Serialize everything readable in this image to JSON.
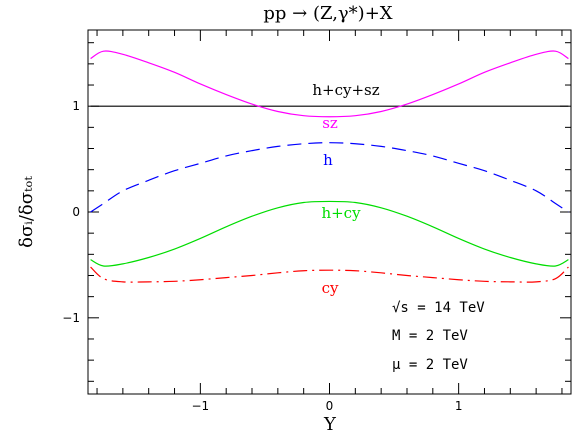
{
  "chart_data": {
    "type": "line",
    "title": "pp → (Z,γ*)+X",
    "xlabel": "Y",
    "ylabel": "δσᵢ/δσₜₒₜ",
    "xlim": [
      -1.87,
      1.87
    ],
    "ylim": [
      -1.72,
      1.72
    ],
    "xticks": [
      -1,
      0,
      1
    ],
    "yticks": [
      -1,
      0,
      1
    ],
    "grid": false,
    "legend": "none",
    "series": [
      {
        "name": "h+cy+sz",
        "style": "solid",
        "color": "#000000",
        "x": [
          -1.85,
          1.85
        ],
        "y": [
          1.0,
          1.0
        ]
      },
      {
        "name": "sz",
        "style": "solid",
        "color": "#ff00ff",
        "x": [
          -1.85,
          -1.75,
          -1.6,
          -1.4,
          -1.2,
          -1.0,
          -0.8,
          -0.6,
          -0.4,
          -0.2,
          0.0,
          0.2,
          0.4,
          0.6,
          0.8,
          1.0,
          1.2,
          1.4,
          1.6,
          1.75,
          1.85
        ],
        "y": [
          1.45,
          1.52,
          1.49,
          1.41,
          1.32,
          1.21,
          1.11,
          1.02,
          0.95,
          0.91,
          0.9,
          0.91,
          0.95,
          1.02,
          1.11,
          1.21,
          1.32,
          1.41,
          1.49,
          1.52,
          1.45
        ]
      },
      {
        "name": "h",
        "style": "dash",
        "color": "#0000ff",
        "x": [
          -1.85,
          -1.75,
          -1.6,
          -1.4,
          -1.2,
          -1.0,
          -0.8,
          -0.6,
          -0.4,
          -0.2,
          0.0,
          0.2,
          0.4,
          0.6,
          0.8,
          1.0,
          1.2,
          1.4,
          1.6,
          1.75,
          1.85
        ],
        "y": [
          0.0,
          0.08,
          0.2,
          0.3,
          0.39,
          0.46,
          0.53,
          0.58,
          0.62,
          0.645,
          0.655,
          0.645,
          0.62,
          0.58,
          0.53,
          0.46,
          0.39,
          0.3,
          0.2,
          0.08,
          0.0
        ]
      },
      {
        "name": "h+cy",
        "style": "solid",
        "color": "#00dd00",
        "x": [
          -1.85,
          -1.75,
          -1.6,
          -1.4,
          -1.2,
          -1.0,
          -0.8,
          -0.6,
          -0.4,
          -0.2,
          0.0,
          0.2,
          0.4,
          0.6,
          0.8,
          1.0,
          1.2,
          1.4,
          1.6,
          1.75,
          1.85
        ],
        "y": [
          -0.45,
          -0.51,
          -0.49,
          -0.43,
          -0.35,
          -0.25,
          -0.14,
          -0.04,
          0.04,
          0.09,
          0.1,
          0.09,
          0.04,
          -0.04,
          -0.14,
          -0.25,
          -0.35,
          -0.43,
          -0.49,
          -0.51,
          -0.45
        ]
      },
      {
        "name": "cy",
        "style": "dashdot",
        "color": "#ff0000",
        "x": [
          -1.85,
          -1.75,
          -1.6,
          -1.4,
          -1.2,
          -1.0,
          -0.8,
          -0.6,
          -0.4,
          -0.2,
          0.0,
          0.2,
          0.4,
          0.6,
          0.8,
          1.0,
          1.2,
          1.4,
          1.6,
          1.75,
          1.85
        ],
        "y": [
          -0.52,
          -0.63,
          -0.66,
          -0.66,
          -0.655,
          -0.64,
          -0.62,
          -0.6,
          -0.575,
          -0.555,
          -0.55,
          -0.555,
          -0.575,
          -0.6,
          -0.62,
          -0.64,
          -0.655,
          -0.66,
          -0.66,
          -0.63,
          -0.52
        ]
      }
    ],
    "annotations": [
      {
        "text": "√s = 14 TeV"
      },
      {
        "text": "M = 2 TeV"
      },
      {
        "text": "μ = 2 TeV"
      }
    ]
  }
}
